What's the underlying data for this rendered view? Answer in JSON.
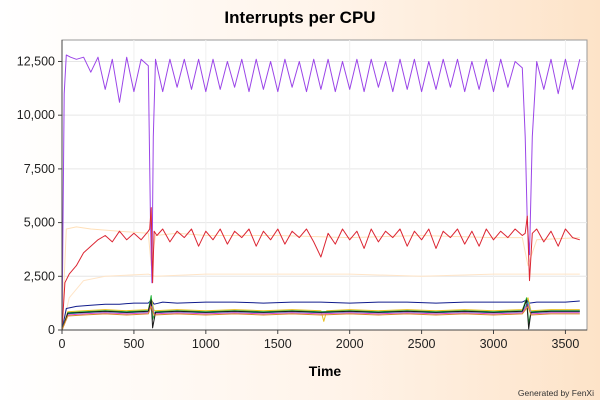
{
  "chart_data": {
    "type": "line",
    "title": "Interrupts per CPU",
    "xlabel": "Time",
    "ylabel": "",
    "credit": "Generated by FenXi",
    "xlim": [
      0,
      3650
    ],
    "ylim": [
      0,
      13500
    ],
    "x_ticks": [
      0,
      500,
      1000,
      1500,
      2000,
      2500,
      3000,
      3500
    ],
    "x_tick_labels": [
      "0",
      "500",
      "1000",
      "1500",
      "2000",
      "2500",
      "3000",
      "3500"
    ],
    "y_ticks": [
      0,
      2500,
      5000,
      7500,
      10000,
      12500
    ],
    "y_tick_labels": [
      "0",
      "2,500",
      "5,000",
      "7,500",
      "10,000",
      "12,500"
    ],
    "grid": true,
    "legend": "none",
    "series": [
      {
        "color": "#ffe0b8",
        "x": [
          0,
          30,
          100,
          200,
          400,
          600,
          620,
          650,
          800,
          1000,
          1500,
          2000,
          2500,
          3000,
          3200,
          3240,
          3300,
          3600
        ],
        "y": [
          0,
          4700,
          4800,
          4700,
          4600,
          4500,
          3000,
          4400,
          4500,
          4400,
          4400,
          4300,
          4400,
          4300,
          4300,
          3000,
          4200,
          4300
        ]
      },
      {
        "color": "#ffe5c8",
        "x": [
          0,
          50,
          150,
          300,
          600,
          650,
          1000,
          1500,
          2000,
          2500,
          3000,
          3600
        ],
        "y": [
          0,
          1500,
          2300,
          2500,
          2600,
          2500,
          2600,
          2600,
          2600,
          2500,
          2600,
          2600
        ]
      },
      {
        "color": "#9b45e8",
        "x": [
          0,
          15,
          30,
          60,
          100,
          150,
          200,
          250,
          300,
          350,
          400,
          450,
          500,
          550,
          600,
          615,
          625,
          635,
          650,
          700,
          750,
          800,
          850,
          900,
          950,
          1000,
          1050,
          1100,
          1150,
          1200,
          1250,
          1300,
          1350,
          1400,
          1450,
          1500,
          1550,
          1600,
          1650,
          1700,
          1750,
          1800,
          1850,
          1900,
          1950,
          2000,
          2050,
          2100,
          2150,
          2200,
          2250,
          2300,
          2350,
          2400,
          2450,
          2500,
          2550,
          2600,
          2650,
          2700,
          2750,
          2800,
          2850,
          2900,
          2950,
          3000,
          3050,
          3100,
          3150,
          3200,
          3220,
          3235,
          3250,
          3270,
          3300,
          3350,
          3400,
          3450,
          3500,
          3550,
          3600
        ],
        "y": [
          0,
          11000,
          12800,
          12700,
          12600,
          12700,
          12000,
          12700,
          11200,
          12600,
          10600,
          12700,
          11100,
          12600,
          12300,
          5000,
          2200,
          9000,
          12600,
          11100,
          12600,
          11300,
          12600,
          11200,
          12600,
          11100,
          12600,
          11200,
          12500,
          11300,
          12600,
          11100,
          12600,
          11200,
          12500,
          11100,
          12600,
          11300,
          12500,
          11100,
          12600,
          11200,
          12600,
          11100,
          12500,
          11200,
          12600,
          11100,
          12600,
          11300,
          12500,
          11100,
          12600,
          11200,
          12600,
          11100,
          12500,
          11200,
          12600,
          11300,
          12600,
          11100,
          12500,
          11200,
          12600,
          11100,
          12600,
          11300,
          12500,
          12200,
          9000,
          5000,
          3500,
          9000,
          12500,
          11200,
          12600,
          11000,
          12600,
          11200,
          12600
        ]
      },
      {
        "color": "#dc2633",
        "x": [
          0,
          20,
          50,
          100,
          150,
          200,
          250,
          300,
          350,
          400,
          450,
          500,
          550,
          600,
          610,
          620,
          630,
          640,
          660,
          700,
          750,
          800,
          850,
          900,
          950,
          1000,
          1050,
          1100,
          1150,
          1200,
          1250,
          1300,
          1350,
          1400,
          1450,
          1500,
          1550,
          1600,
          1650,
          1700,
          1750,
          1800,
          1850,
          1900,
          1950,
          2000,
          2050,
          2100,
          2150,
          2200,
          2250,
          2300,
          2350,
          2400,
          2450,
          2500,
          2550,
          2600,
          2650,
          2700,
          2750,
          2800,
          2850,
          2900,
          2950,
          3000,
          3050,
          3100,
          3150,
          3200,
          3220,
          3235,
          3250,
          3270,
          3300,
          3350,
          3400,
          3450,
          3500,
          3550,
          3600
        ],
        "y": [
          0,
          2200,
          2600,
          3000,
          3600,
          3900,
          4200,
          4400,
          4100,
          4600,
          4200,
          4500,
          4200,
          4600,
          4700,
          5700,
          2200,
          4600,
          4400,
          4700,
          4100,
          4600,
          4300,
          4700,
          3900,
          4600,
          4200,
          4700,
          4000,
          4600,
          4300,
          4700,
          3900,
          4600,
          4200,
          4700,
          4000,
          4600,
          4300,
          4700,
          4100,
          3400,
          4500,
          4000,
          4700,
          4200,
          4600,
          3800,
          4700,
          4100,
          4600,
          4300,
          4700,
          3900,
          4600,
          4200,
          4700,
          3800,
          4600,
          4300,
          4700,
          4000,
          4600,
          3900,
          4700,
          4200,
          4600,
          4300,
          4700,
          4400,
          4500,
          5300,
          2300,
          4500,
          4700,
          4100,
          4600,
          3900,
          4700,
          4300,
          4200
        ]
      },
      {
        "color": "#101c8c",
        "x": [
          0,
          30,
          100,
          200,
          300,
          400,
          500,
          600,
          620,
          640,
          700,
          800,
          1000,
          1200,
          1400,
          1600,
          1800,
          2000,
          2200,
          2400,
          2600,
          2800,
          3000,
          3200,
          3230,
          3250,
          3300,
          3400,
          3500,
          3600
        ],
        "y": [
          0,
          1000,
          1100,
          1150,
          1200,
          1200,
          1250,
          1250,
          1400,
          1200,
          1300,
          1250,
          1300,
          1300,
          1250,
          1300,
          1300,
          1250,
          1300,
          1300,
          1250,
          1300,
          1300,
          1300,
          1400,
          1250,
          1300,
          1300,
          1300,
          1350
        ]
      },
      {
        "color": "#e8c020",
        "x": [
          0,
          40,
          150,
          300,
          450,
          600,
          620,
          640,
          800,
          1000,
          1200,
          1400,
          1600,
          1800,
          1820,
          1840,
          2000,
          2200,
          2400,
          2600,
          2800,
          3000,
          3200,
          3240,
          3260,
          3400,
          3600
        ],
        "y": [
          0,
          850,
          900,
          950,
          900,
          950,
          1500,
          900,
          950,
          900,
          950,
          900,
          950,
          900,
          400,
          900,
          950,
          900,
          950,
          900,
          950,
          900,
          950,
          1500,
          900,
          950,
          950
        ]
      },
      {
        "color": "#1fb33a",
        "x": [
          0,
          40,
          150,
          300,
          450,
          600,
          620,
          630,
          650,
          800,
          1000,
          1200,
          1400,
          1600,
          1800,
          2000,
          2200,
          2400,
          2600,
          2800,
          3000,
          3200,
          3230,
          3245,
          3260,
          3400,
          3600
        ],
        "y": [
          0,
          800,
          850,
          900,
          850,
          900,
          1600,
          500,
          850,
          900,
          850,
          900,
          850,
          900,
          850,
          900,
          850,
          900,
          850,
          900,
          850,
          900,
          1500,
          300,
          850,
          900,
          900
        ]
      },
      {
        "color": "#27c3d3",
        "x": [
          0,
          40,
          150,
          300,
          450,
          600,
          620,
          640,
          800,
          1000,
          1200,
          1400,
          1600,
          1800,
          2000,
          2200,
          2400,
          2600,
          2800,
          3000,
          3200,
          3240,
          3260,
          3400,
          3600
        ],
        "y": [
          0,
          750,
          800,
          850,
          800,
          850,
          1300,
          800,
          850,
          800,
          850,
          800,
          850,
          800,
          850,
          800,
          850,
          800,
          850,
          800,
          850,
          1300,
          800,
          850,
          850
        ]
      },
      {
        "color": "#e04ac8",
        "x": [
          0,
          40,
          150,
          300,
          450,
          600,
          620,
          640,
          800,
          1000,
          1200,
          1400,
          1600,
          1800,
          2000,
          2200,
          2400,
          2600,
          2800,
          3000,
          3200,
          3240,
          3260,
          3400,
          3600
        ],
        "y": [
          0,
          700,
          750,
          800,
          750,
          800,
          1200,
          750,
          800,
          750,
          800,
          750,
          800,
          750,
          800,
          750,
          800,
          750,
          800,
          750,
          800,
          1200,
          750,
          800,
          800
        ]
      },
      {
        "color": "#1a1a1a",
        "x": [
          0,
          40,
          150,
          300,
          450,
          600,
          620,
          630,
          650,
          800,
          1000,
          1200,
          1400,
          1600,
          1800,
          2000,
          2200,
          2400,
          2600,
          2800,
          3000,
          3200,
          3230,
          3245,
          3260,
          3400,
          3600
        ],
        "y": [
          0,
          780,
          820,
          870,
          820,
          870,
          1400,
          100,
          820,
          870,
          820,
          870,
          820,
          870,
          820,
          870,
          820,
          870,
          820,
          870,
          820,
          870,
          1400,
          50,
          820,
          870,
          870
        ]
      },
      {
        "color": "#d98a2a",
        "x": [
          0,
          40,
          150,
          300,
          450,
          600,
          620,
          640,
          800,
          1000,
          1200,
          1400,
          1600,
          1800,
          2000,
          2200,
          2400,
          2600,
          2800,
          3000,
          3200,
          3240,
          3260,
          3400,
          3600
        ],
        "y": [
          0,
          650,
          700,
          750,
          700,
          750,
          1100,
          700,
          750,
          700,
          750,
          700,
          750,
          700,
          750,
          700,
          750,
          700,
          750,
          700,
          750,
          1100,
          700,
          750,
          750
        ]
      }
    ]
  }
}
